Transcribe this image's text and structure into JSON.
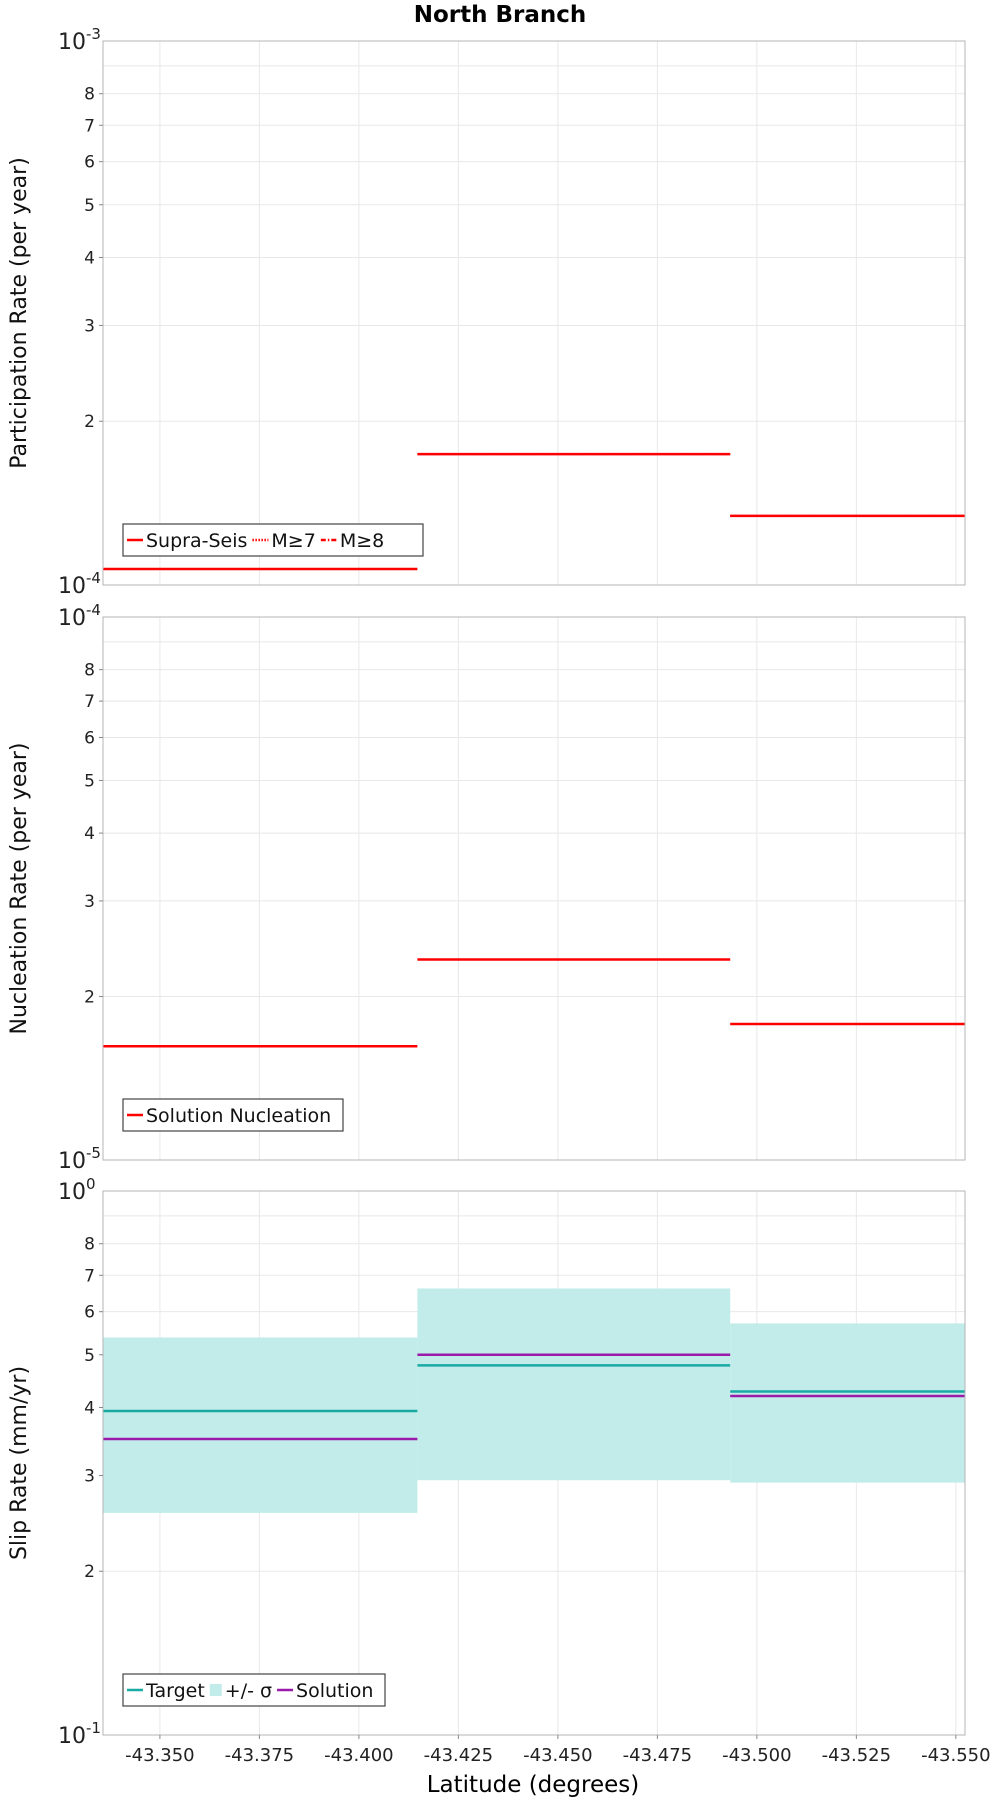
{
  "chart_data": {
    "type": "line",
    "title": "North Branch",
    "xlabel": "Latitude (degrees)",
    "xlim": [
      -43.3357,
      -43.5523
    ],
    "x_ticks": [
      -43.35,
      -43.375,
      -43.4,
      -43.425,
      -43.45,
      -43.475,
      -43.5,
      -43.525,
      -43.55
    ],
    "x_tick_labels": [
      "-43.350",
      "-43.375",
      "-43.400",
      "-43.425",
      "-43.450",
      "-43.475",
      "-43.500",
      "-43.525",
      "-43.550"
    ],
    "segments": [
      {
        "x0": -43.3357,
        "x1": -43.4147
      },
      {
        "x0": -43.4147,
        "x1": -43.4933
      },
      {
        "x0": -43.4933,
        "x1": -43.5523
      }
    ],
    "panels": [
      {
        "id": "participation",
        "ylabel": "Participation Rate (per year)",
        "yscale": "log",
        "ylim": [
          0.0001,
          0.001
        ],
        "y_major": [
          {
            "base": "10",
            "exp": "-4"
          },
          {
            "base": "10",
            "exp": "-3"
          }
        ],
        "y_minor": [
          {
            "value": 0.0002,
            "label": "2"
          },
          {
            "value": 0.0003,
            "label": "3"
          },
          {
            "value": 0.0004,
            "label": "4"
          },
          {
            "value": 0.0005,
            "label": "5"
          },
          {
            "value": 0.0006,
            "label": "6"
          },
          {
            "value": 0.0007,
            "label": "7"
          },
          {
            "value": 0.0008,
            "label": "8"
          },
          {
            "value": 0.0009,
            "label": ""
          }
        ],
        "series": [
          {
            "name": "Supra-Seis",
            "color": "#ff0000",
            "style": "solid",
            "values": [
              0.000107,
              0.000174,
              0.000134
            ]
          },
          {
            "name": "M≥7",
            "color": "#ff0000",
            "style": "dotted",
            "values": [
              0.000107,
              0.000174,
              0.000134
            ]
          },
          {
            "name": "M≥8",
            "color": "#ff0000",
            "style": "dashdot",
            "values": [
              null,
              null,
              null
            ]
          }
        ],
        "legend": "bottom-left"
      },
      {
        "id": "nucleation",
        "ylabel": "Nucleation Rate (per year)",
        "yscale": "log",
        "ylim": [
          1e-05,
          0.0001
        ],
        "y_major": [
          {
            "base": "10",
            "exp": "-5"
          },
          {
            "base": "10",
            "exp": "-4"
          }
        ],
        "y_minor": [
          {
            "value": 2e-05,
            "label": "2"
          },
          {
            "value": 3e-05,
            "label": "3"
          },
          {
            "value": 4e-05,
            "label": "4"
          },
          {
            "value": 5e-05,
            "label": "5"
          },
          {
            "value": 6e-05,
            "label": "6"
          },
          {
            "value": 7e-05,
            "label": "7"
          },
          {
            "value": 8e-05,
            "label": "8"
          },
          {
            "value": 9e-05,
            "label": ""
          }
        ],
        "series": [
          {
            "name": "Solution Nucleation",
            "color": "#ff0000",
            "style": "solid",
            "values": [
              1.62e-05,
              2.34e-05,
              1.78e-05
            ]
          }
        ],
        "legend": "bottom-left"
      },
      {
        "id": "slip",
        "ylabel": "Slip Rate (mm/yr)",
        "yscale": "log",
        "ylim": [
          0.1,
          1.0
        ],
        "y_major": [
          {
            "base": "10",
            "exp": "-1"
          },
          {
            "base": "10",
            "exp": "0"
          }
        ],
        "y_minor": [
          {
            "value": 0.2,
            "label": "2"
          },
          {
            "value": 0.3,
            "label": "3"
          },
          {
            "value": 0.4,
            "label": "4"
          },
          {
            "value": 0.5,
            "label": "5"
          },
          {
            "value": 0.6,
            "label": "6"
          },
          {
            "value": 0.7,
            "label": "7"
          },
          {
            "value": 0.8,
            "label": "8"
          },
          {
            "value": 0.9,
            "label": ""
          }
        ],
        "bands": [
          {
            "name": "+/- σ",
            "color": "#c2ecea",
            "low": [
              0.256,
              0.294,
              0.291
            ],
            "high": [
              0.538,
              0.662,
              0.571
            ]
          }
        ],
        "series": [
          {
            "name": "Target",
            "color": "#1aaaa4",
            "style": "solid",
            "values": [
              0.394,
              0.478,
              0.428
            ]
          },
          {
            "name": "Solution",
            "color": "#9a1aaa",
            "style": "solid",
            "values": [
              0.35,
              0.5,
              0.42
            ]
          }
        ],
        "legend_items": [
          "Target",
          "+/- σ",
          "Solution"
        ],
        "legend": "bottom-left"
      }
    ]
  }
}
